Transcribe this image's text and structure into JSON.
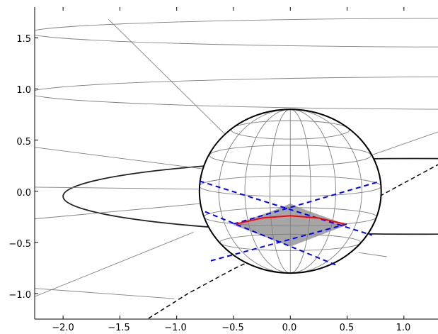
{
  "colors": {
    "axes": "#000000",
    "construction_lines": "#808080",
    "sphere_outline": "#000000",
    "dashed_blue": "#0000ff",
    "red_arc": "#ff0000",
    "shaded_region": "#a6a6a6",
    "dashed_black": "#000000"
  },
  "chart_data": {
    "type": "line",
    "title": "",
    "xlabel": "",
    "ylabel": "",
    "xlim": [
      -2.25,
      1.3
    ],
    "ylim": [
      -1.25,
      1.8
    ],
    "grid": false,
    "x_ticks": [
      -2.0,
      -1.5,
      -1.0,
      -0.5,
      0.0,
      0.5,
      1.0
    ],
    "x_tick_labels": [
      "−2.0",
      "−1.5",
      "−1.0",
      "−0.5",
      "0.0",
      "0.5",
      "1.0"
    ],
    "y_ticks": [
      1.5,
      1.0,
      0.5,
      0.0,
      -0.5,
      -1.0
    ],
    "y_tick_labels": [
      "1.5",
      "1.0",
      "0.5",
      "0.0",
      "−0.5",
      "−1.0"
    ],
    "sphere": {
      "center": [
        0.0,
        0.0
      ],
      "rx": 0.8,
      "ry": 0.8
    },
    "latitudes": [
      {
        "y": 0.6,
        "rx": 0.52,
        "ry": 0.09
      },
      {
        "y": 0.35,
        "rx": 0.71,
        "ry": 0.1
      },
      {
        "y": 0.05,
        "rx": 0.8,
        "ry": 0.1
      },
      {
        "y": -0.25,
        "rx": 0.76,
        "ry": 0.09
      },
      {
        "y": -0.5,
        "rx": 0.62,
        "ry": 0.08
      }
    ],
    "meridian_rx": [
      0.18,
      0.4,
      0.63
    ],
    "big_ellipses": [
      {
        "cx": 1.6,
        "cy": 1.55,
        "rx": 3.9,
        "ry": 0.14,
        "lw": 0.9
      },
      {
        "cx": 1.9,
        "cy": 0.96,
        "rx": 4.2,
        "ry": 0.16,
        "lw": 0.9
      },
      {
        "cx": 1.1,
        "cy": -0.05,
        "rx": 3.1,
        "ry": 0.37,
        "lw": 1.8
      }
    ],
    "construction_lines": [
      [
        [
          -1.6,
          1.68
        ],
        [
          -0.55,
          0.53
        ]
      ],
      [
        [
          -2.25,
          0.43
        ],
        [
          -0.78,
          0.22
        ]
      ],
      [
        [
          -2.25,
          0.04
        ],
        [
          -0.77,
          0.02
        ]
      ],
      [
        [
          -2.25,
          -0.27
        ],
        [
          -0.78,
          -0.12
        ]
      ],
      [
        [
          -2.25,
          -1.03
        ],
        [
          -0.85,
          -0.4
        ]
      ],
      [
        [
          -2.25,
          -0.95
        ],
        [
          -1.02,
          -1.05
        ]
      ],
      [
        [
          0.58,
          0.3
        ],
        [
          1.3,
          0.58
        ]
      ],
      [
        [
          0.6,
          -0.6
        ],
        [
          0.85,
          -0.64
        ]
      ]
    ],
    "blue_dashed_lines": [
      [
        [
          -0.8,
          0.1
        ],
        [
          0.72,
          -0.43
        ]
      ],
      [
        [
          -0.75,
          -0.2
        ],
        [
          0.4,
          -0.72
        ]
      ],
      [
        [
          -0.5,
          -0.32
        ],
        [
          0.8,
          0.1
        ]
      ],
      [
        [
          -0.7,
          -0.68
        ],
        [
          0.5,
          -0.32
        ]
      ]
    ],
    "shaded_region": [
      [
        -0.5,
        -0.33
      ],
      [
        -0.08,
        -0.16
      ],
      [
        0.0,
        -0.12
      ],
      [
        0.08,
        -0.16
      ],
      [
        0.5,
        -0.33
      ],
      [
        0.0,
        -0.54
      ]
    ],
    "red_arc": [
      [
        -0.48,
        -0.32
      ],
      [
        -0.24,
        -0.26
      ],
      [
        0.0,
        -0.24
      ],
      [
        0.24,
        -0.26
      ],
      [
        0.48,
        -0.32
      ]
    ],
    "black_dashed_curve": [
      [
        -1.3,
        -1.28
      ],
      [
        -0.9,
        -1.0
      ],
      [
        -0.5,
        -0.76
      ],
      [
        -0.1,
        -0.55
      ],
      [
        0.3,
        -0.35
      ],
      [
        0.7,
        -0.1
      ],
      [
        1.0,
        0.08
      ],
      [
        1.3,
        0.26
      ]
    ]
  }
}
